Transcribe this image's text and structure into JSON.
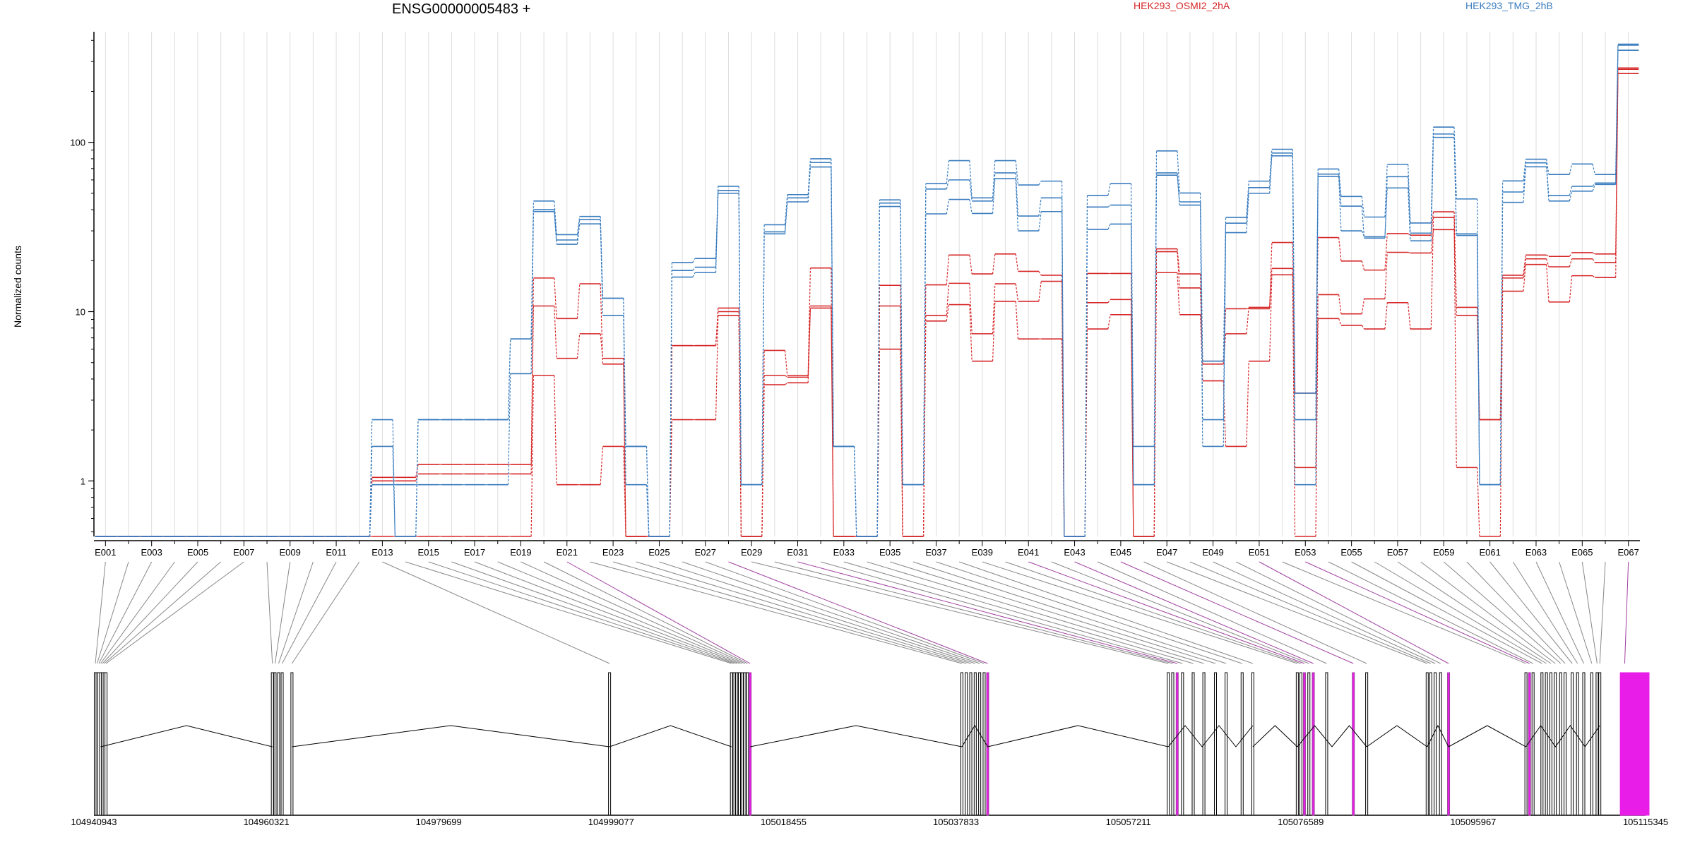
{
  "title": "ENSG00000005483 +",
  "legend": [
    {
      "name": "HEK293_OSMI2_2hA",
      "color": "#d62728"
    },
    {
      "name": "HEK293_TMG_2hB",
      "color": "#3a7dbf"
    }
  ],
  "ylabel": "Normalized counts",
  "colors": {
    "red": "#d62728",
    "blue": "#3a7dbf",
    "exon_highlight": "#e81ee8",
    "exon_highlight_line": "#a040a0",
    "grid": "#dddddd"
  },
  "chart_data": {
    "type": "line",
    "title": "ENSG00000005483 +",
    "ylabel": "Normalized counts",
    "yscale": "log",
    "ylim": [
      0.47,
      450
    ],
    "yticks": [
      1,
      10,
      100
    ],
    "ytick_labels": [
      "1",
      "10",
      "100"
    ],
    "xtick_labels": [
      "E001",
      "E003",
      "E005",
      "E007",
      "E009",
      "E011",
      "E013",
      "E015",
      "E017",
      "E019",
      "E021",
      "E023",
      "E025",
      "E027",
      "E029",
      "E031",
      "E033",
      "E035",
      "E037",
      "E039",
      "E041",
      "E043",
      "E045",
      "E047",
      "E049",
      "E051",
      "E053",
      "E055",
      "E057",
      "E059",
      "E061",
      "E063",
      "E065",
      "E067"
    ],
    "categories": [
      "E001",
      "E002",
      "E003",
      "E004",
      "E005",
      "E006",
      "E007",
      "E008",
      "E009",
      "E010",
      "E011",
      "E012",
      "E013",
      "E014",
      "E015",
      "E016",
      "E017",
      "E018",
      "E019",
      "E020",
      "E021",
      "E022",
      "E023",
      "E024",
      "E025",
      "E026",
      "E027",
      "E028",
      "E029",
      "E030",
      "E031",
      "E032",
      "E033",
      "E034",
      "E035",
      "E036",
      "E037",
      "E038",
      "E039",
      "E040",
      "E041",
      "E042",
      "E043",
      "E044",
      "E045",
      "E046",
      "E047",
      "E048",
      "E049",
      "E050",
      "E051",
      "E052",
      "E053",
      "E054",
      "E055",
      "E056",
      "E057",
      "E058",
      "E059",
      "E060",
      "E061",
      "E062",
      "E063",
      "E064",
      "E065",
      "E066",
      "E067"
    ],
    "grid": true,
    "series": [
      {
        "name": "HEK293_OSMI2_2hA",
        "color": "#d62728",
        "values": [
          0.47,
          0.47,
          0.47,
          0.47,
          0.47,
          0.47,
          0.47,
          0.47,
          0.47,
          0.47,
          0.47,
          0.47,
          0.47,
          0.47,
          0.47,
          0.47,
          0.47,
          0.47,
          0.47,
          4.2,
          0.95,
          0.95,
          1.6,
          0.47,
          0.47,
          2.3,
          2.3,
          9.5,
          0.47,
          3.7,
          3.8,
          10.5,
          0.47,
          0.47,
          6,
          0.47,
          8.8,
          11,
          5.1,
          11.5,
          6.9,
          6.9,
          0.47,
          7.9,
          9.6,
          0.47,
          17,
          9.6,
          3.9,
          1.6,
          5.1,
          16.5,
          0.47,
          9.1,
          8.3,
          7.9,
          11.3,
          7.9,
          36,
          1.2,
          0.47,
          13.2,
          19,
          11.4,
          16.3,
          15.9,
          270
        ]
      },
      {
        "name": "HEK293_OSMI2_2hA",
        "color": "#d62728",
        "values": [
          0.47,
          0.47,
          0.47,
          0.47,
          0.47,
          0.47,
          0.47,
          0.47,
          0.47,
          0.47,
          0.47,
          0.47,
          1.0,
          1.0,
          1.1,
          1.1,
          1.1,
          1.1,
          1.1,
          10.8,
          5.3,
          7.4,
          5.3,
          0.47,
          0.47,
          6.3,
          6.3,
          10,
          0.47,
          4.2,
          4.1,
          10.8,
          0.47,
          0.47,
          10.8,
          0.47,
          9.5,
          14.7,
          7.4,
          14.6,
          11.5,
          15.1,
          0.47,
          11.3,
          11.8,
          0.47,
          22.6,
          13.8,
          4.9,
          7.4,
          10.6,
          18,
          1.2,
          12.6,
          9.7,
          11.9,
          22.4,
          22.2,
          30.5,
          9.5,
          2.3,
          15.8,
          20.5,
          18.4,
          20.5,
          19.5,
          255
        ]
      },
      {
        "name": "HEK293_OSMI2_2hA",
        "color": "#d62728",
        "values": [
          0.47,
          0.47,
          0.47,
          0.47,
          0.47,
          0.47,
          0.47,
          0.47,
          0.47,
          0.47,
          0.47,
          0.47,
          1.05,
          1.05,
          1.25,
          1.25,
          1.25,
          1.25,
          1.25,
          15.8,
          9.1,
          14.6,
          4.9,
          0.47,
          0.47,
          6.3,
          6.3,
          10.5,
          0.47,
          5.9,
          4.2,
          18.1,
          0.47,
          0.47,
          14.3,
          0.47,
          14.4,
          21.6,
          16.7,
          21.9,
          17.3,
          16.4,
          0.47,
          16.8,
          16.8,
          0.47,
          23.5,
          16.7,
          5.1,
          10.4,
          10.4,
          25.6,
          3.3,
          27.4,
          19.9,
          17.6,
          28.9,
          28.3,
          38.9,
          10.6,
          2.3,
          16.4,
          21.6,
          21.2,
          22.3,
          21.9,
          275
        ]
      },
      {
        "name": "HEK293_TMG_2hB",
        "color": "#3a7dbf",
        "values": [
          0.47,
          0.47,
          0.47,
          0.47,
          0.47,
          0.47,
          0.47,
          0.47,
          0.47,
          0.47,
          0.47,
          0.47,
          0.95,
          0.95,
          0.95,
          0.95,
          0.95,
          0.95,
          4.3,
          39,
          25,
          33,
          12,
          0.95,
          0.47,
          16,
          17,
          50,
          0.95,
          28.8,
          44.5,
          71.5,
          1.6,
          0.47,
          41.8,
          0.95,
          37.8,
          46,
          38,
          61,
          30,
          39,
          0.47,
          30.6,
          32.9,
          0.95,
          64,
          42.6,
          1.6,
          29.3,
          50,
          83.2,
          0.95,
          62.9,
          30,
          27.7,
          53.8,
          26.2,
          107,
          28.2,
          0.95,
          44.2,
          71.7,
          45,
          51.5,
          56.4,
          350
        ]
      },
      {
        "name": "HEK293_TMG_2hB",
        "color": "#3a7dbf",
        "values": [
          0.47,
          0.47,
          0.47,
          0.47,
          0.47,
          0.47,
          0.47,
          0.47,
          0.47,
          0.47,
          0.47,
          0.47,
          1.6,
          0.47,
          2.3,
          2.3,
          2.3,
          2.3,
          6.9,
          40,
          26.5,
          35,
          9.5,
          1.6,
          0.47,
          17.5,
          18.3,
          52,
          0.95,
          29.6,
          47,
          76,
          1.6,
          0.47,
          43.8,
          0.95,
          53,
          60,
          45,
          66,
          36.7,
          47,
          0.47,
          41.5,
          42.6,
          0.95,
          66,
          44.5,
          2.3,
          33.3,
          54,
          86.5,
          2.3,
          64.9,
          42,
          27.2,
          62.7,
          29.1,
          112,
          28.8,
          0.95,
          50.9,
          75.7,
          48.5,
          55,
          57.5,
          375
        ]
      },
      {
        "name": "HEK293_TMG_2hB",
        "color": "#3a7dbf",
        "values": [
          0.47,
          0.47,
          0.47,
          0.47,
          0.47,
          0.47,
          0.47,
          0.47,
          0.47,
          0.47,
          0.47,
          0.47,
          2.3,
          0.47,
          2.3,
          2.3,
          2.3,
          2.3,
          6.9,
          45,
          28.5,
          36.5,
          12,
          1.6,
          0.47,
          19.5,
          20.6,
          55,
          0.95,
          32.6,
          49.1,
          80,
          1.6,
          0.47,
          45.7,
          0.95,
          57,
          78,
          47,
          78,
          56,
          59,
          0.47,
          48.6,
          57,
          1.6,
          89,
          50.2,
          5.1,
          36,
          59,
          91,
          3.3,
          69.6,
          47.9,
          36.2,
          74.2,
          33.4,
          123,
          46.3,
          0.95,
          59.2,
          79.5,
          64.6,
          74.5,
          64.6,
          380
        ]
      }
    ],
    "transcript": {
      "coordinate_labels": [
        "104940943",
        "104960321",
        "104979699",
        "104999077",
        "105018455",
        "105037833",
        "105057211",
        "105076589",
        "105095967",
        "105115345"
      ]
    }
  }
}
